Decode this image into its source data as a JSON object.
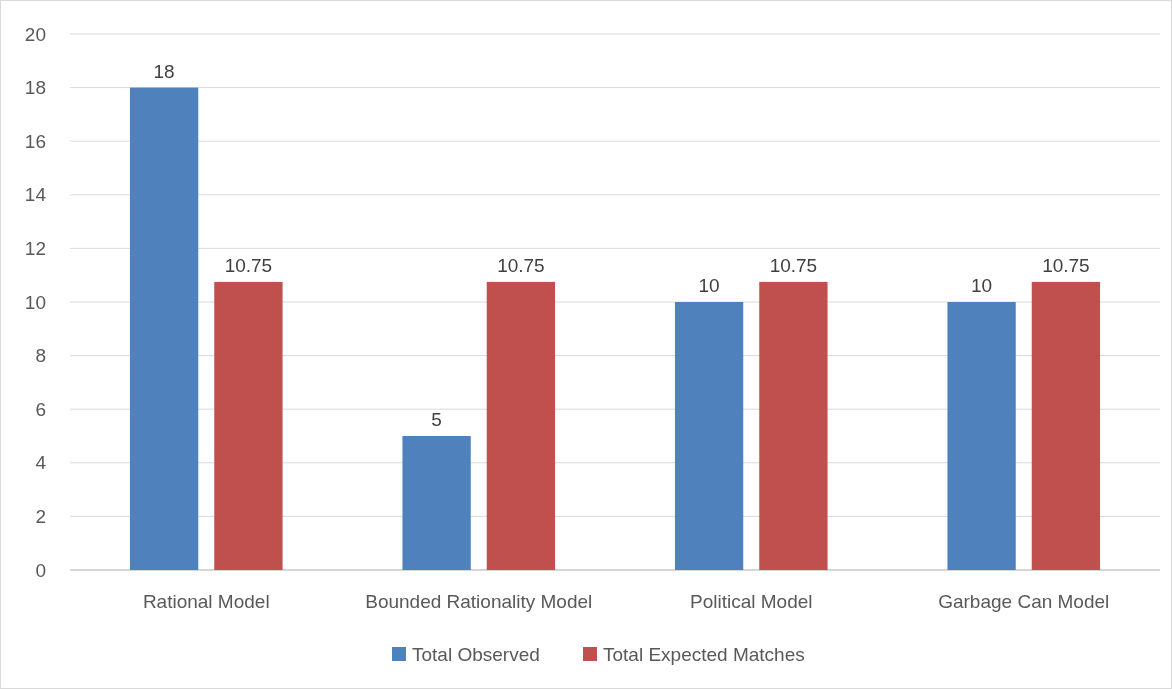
{
  "chart_data": {
    "type": "bar",
    "categories": [
      "Rational Model",
      "Bounded Rationality Model",
      "Political Model",
      "Garbage Can Model"
    ],
    "series": [
      {
        "name": "Total Observed",
        "color": "#4f81bd",
        "values": [
          18,
          5,
          10,
          10
        ]
      },
      {
        "name": "Total Expected Matches",
        "color": "#c0504d",
        "values": [
          10.75,
          10.75,
          10.75,
          10.75
        ]
      }
    ],
    "ylim": [
      0,
      20
    ],
    "yticks": [
      0,
      2,
      4,
      6,
      8,
      10,
      12,
      14,
      16,
      18,
      20
    ],
    "grid": "y",
    "legend": "bottom",
    "data_labels": true
  }
}
